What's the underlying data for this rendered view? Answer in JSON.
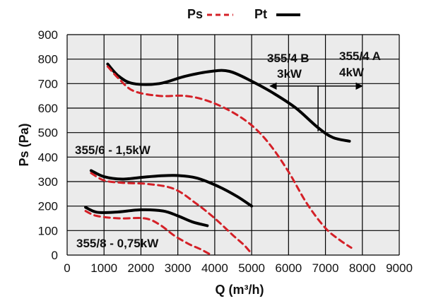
{
  "chart_data": {
    "type": "line",
    "xlabel": "Q (m³/h)",
    "ylabel": "Ps (Pa)",
    "xlim": [
      0,
      9000
    ],
    "ylim": [
      0,
      900
    ],
    "xticks": [
      0,
      1000,
      2000,
      3000,
      4000,
      5000,
      6000,
      7000,
      8000,
      9000
    ],
    "yticks": [
      0,
      100,
      200,
      300,
      400,
      500,
      600,
      700,
      800,
      900
    ],
    "grid": true,
    "legend": {
      "position": "top-center",
      "entries": [
        {
          "label": "Ps",
          "style": "dashed",
          "color": "#d42027"
        },
        {
          "label": "Pt",
          "style": "solid",
          "color": "#000000"
        }
      ]
    },
    "series": [
      {
        "model": "355/4",
        "kind": "Pt",
        "style": "solid",
        "color": "#000000",
        "points": [
          [
            1100,
            780
          ],
          [
            1400,
            730
          ],
          [
            1800,
            700
          ],
          [
            2500,
            700
          ],
          [
            3200,
            730
          ],
          [
            3900,
            750
          ],
          [
            4400,
            750
          ],
          [
            5000,
            710
          ],
          [
            5600,
            660
          ],
          [
            6200,
            600
          ],
          [
            6800,
            520
          ],
          [
            7200,
            480
          ],
          [
            7650,
            465
          ]
        ]
      },
      {
        "model": "355/4",
        "kind": "Ps",
        "style": "dashed",
        "color": "#d42027",
        "points": [
          [
            1100,
            770
          ],
          [
            1400,
            720
          ],
          [
            1800,
            670
          ],
          [
            2500,
            650
          ],
          [
            3200,
            650
          ],
          [
            3800,
            630
          ],
          [
            4400,
            590
          ],
          [
            5000,
            530
          ],
          [
            5500,
            450
          ],
          [
            6000,
            340
          ],
          [
            6500,
            210
          ],
          [
            7000,
            110
          ],
          [
            7400,
            60
          ],
          [
            7700,
            30
          ]
        ]
      },
      {
        "model": "355/6",
        "kind": "Pt",
        "style": "solid",
        "color": "#000000",
        "points": [
          [
            650,
            345
          ],
          [
            1000,
            320
          ],
          [
            1500,
            310
          ],
          [
            2200,
            320
          ],
          [
            2900,
            325
          ],
          [
            3500,
            315
          ],
          [
            4100,
            280
          ],
          [
            4600,
            240
          ],
          [
            5000,
            200
          ]
        ]
      },
      {
        "model": "355/6",
        "kind": "Ps",
        "style": "dashed",
        "color": "#d42027",
        "points": [
          [
            650,
            335
          ],
          [
            1000,
            305
          ],
          [
            1500,
            295
          ],
          [
            2200,
            290
          ],
          [
            2900,
            270
          ],
          [
            3500,
            210
          ],
          [
            4000,
            150
          ],
          [
            4500,
            80
          ],
          [
            4800,
            40
          ],
          [
            5000,
            5
          ]
        ]
      },
      {
        "model": "355/8",
        "kind": "Pt",
        "style": "solid",
        "color": "#000000",
        "points": [
          [
            500,
            195
          ],
          [
            800,
            175
          ],
          [
            1300,
            175
          ],
          [
            2000,
            185
          ],
          [
            2600,
            180
          ],
          [
            3000,
            160
          ],
          [
            3400,
            135
          ],
          [
            3800,
            120
          ]
        ]
      },
      {
        "model": "355/8",
        "kind": "Ps",
        "style": "dashed",
        "color": "#d42027",
        "points": [
          [
            500,
            180
          ],
          [
            800,
            160
          ],
          [
            1400,
            150
          ],
          [
            2100,
            150
          ],
          [
            2500,
            125
          ],
          [
            2900,
            80
          ],
          [
            3300,
            45
          ],
          [
            3600,
            25
          ],
          [
            3850,
            5
          ]
        ]
      }
    ],
    "annotations": [
      {
        "text": "355/4 B"
      },
      {
        "text": "3kW"
      },
      {
        "text": "355/4 A"
      },
      {
        "text": "4kW"
      },
      {
        "text": "355/6 - 1,5kW"
      },
      {
        "text": "355/8 - 0,75kW"
      }
    ],
    "range_markers": [
      {
        "x_from": 5500,
        "x_to": 6800,
        "y": 690
      },
      {
        "x_from": 6800,
        "x_to": 8000,
        "y": 690
      }
    ]
  }
}
